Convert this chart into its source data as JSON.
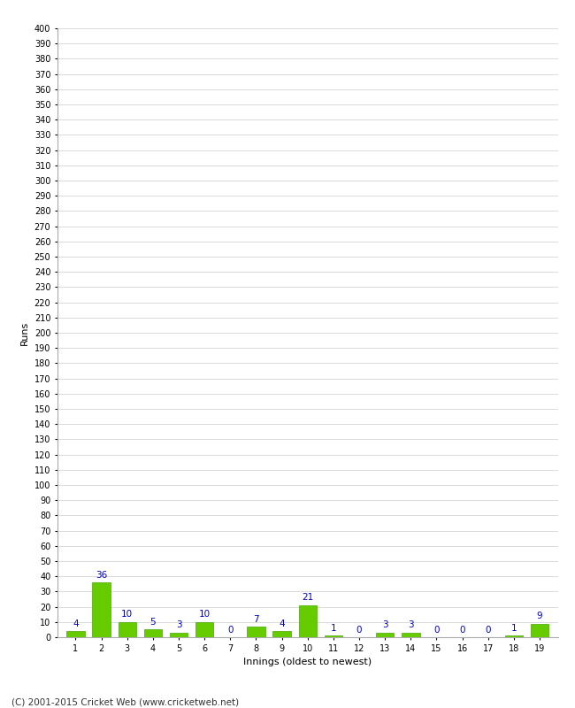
{
  "xlabel": "Innings (oldest to newest)",
  "ylabel": "Runs",
  "bar_color": "#66cc00",
  "bar_edge_color": "#44aa00",
  "label_color": "#0000cc",
  "innings": [
    1,
    2,
    3,
    4,
    5,
    6,
    7,
    8,
    9,
    10,
    11,
    12,
    13,
    14,
    15,
    16,
    17,
    18,
    19
  ],
  "values": [
    4,
    36,
    10,
    5,
    3,
    10,
    0,
    7,
    4,
    21,
    1,
    0,
    3,
    3,
    0,
    0,
    0,
    1,
    9
  ],
  "ylim": [
    0,
    400
  ],
  "background_color": "#ffffff",
  "grid_color": "#cccccc",
  "footer": "(C) 2001-2015 Cricket Web (www.cricketweb.net)"
}
